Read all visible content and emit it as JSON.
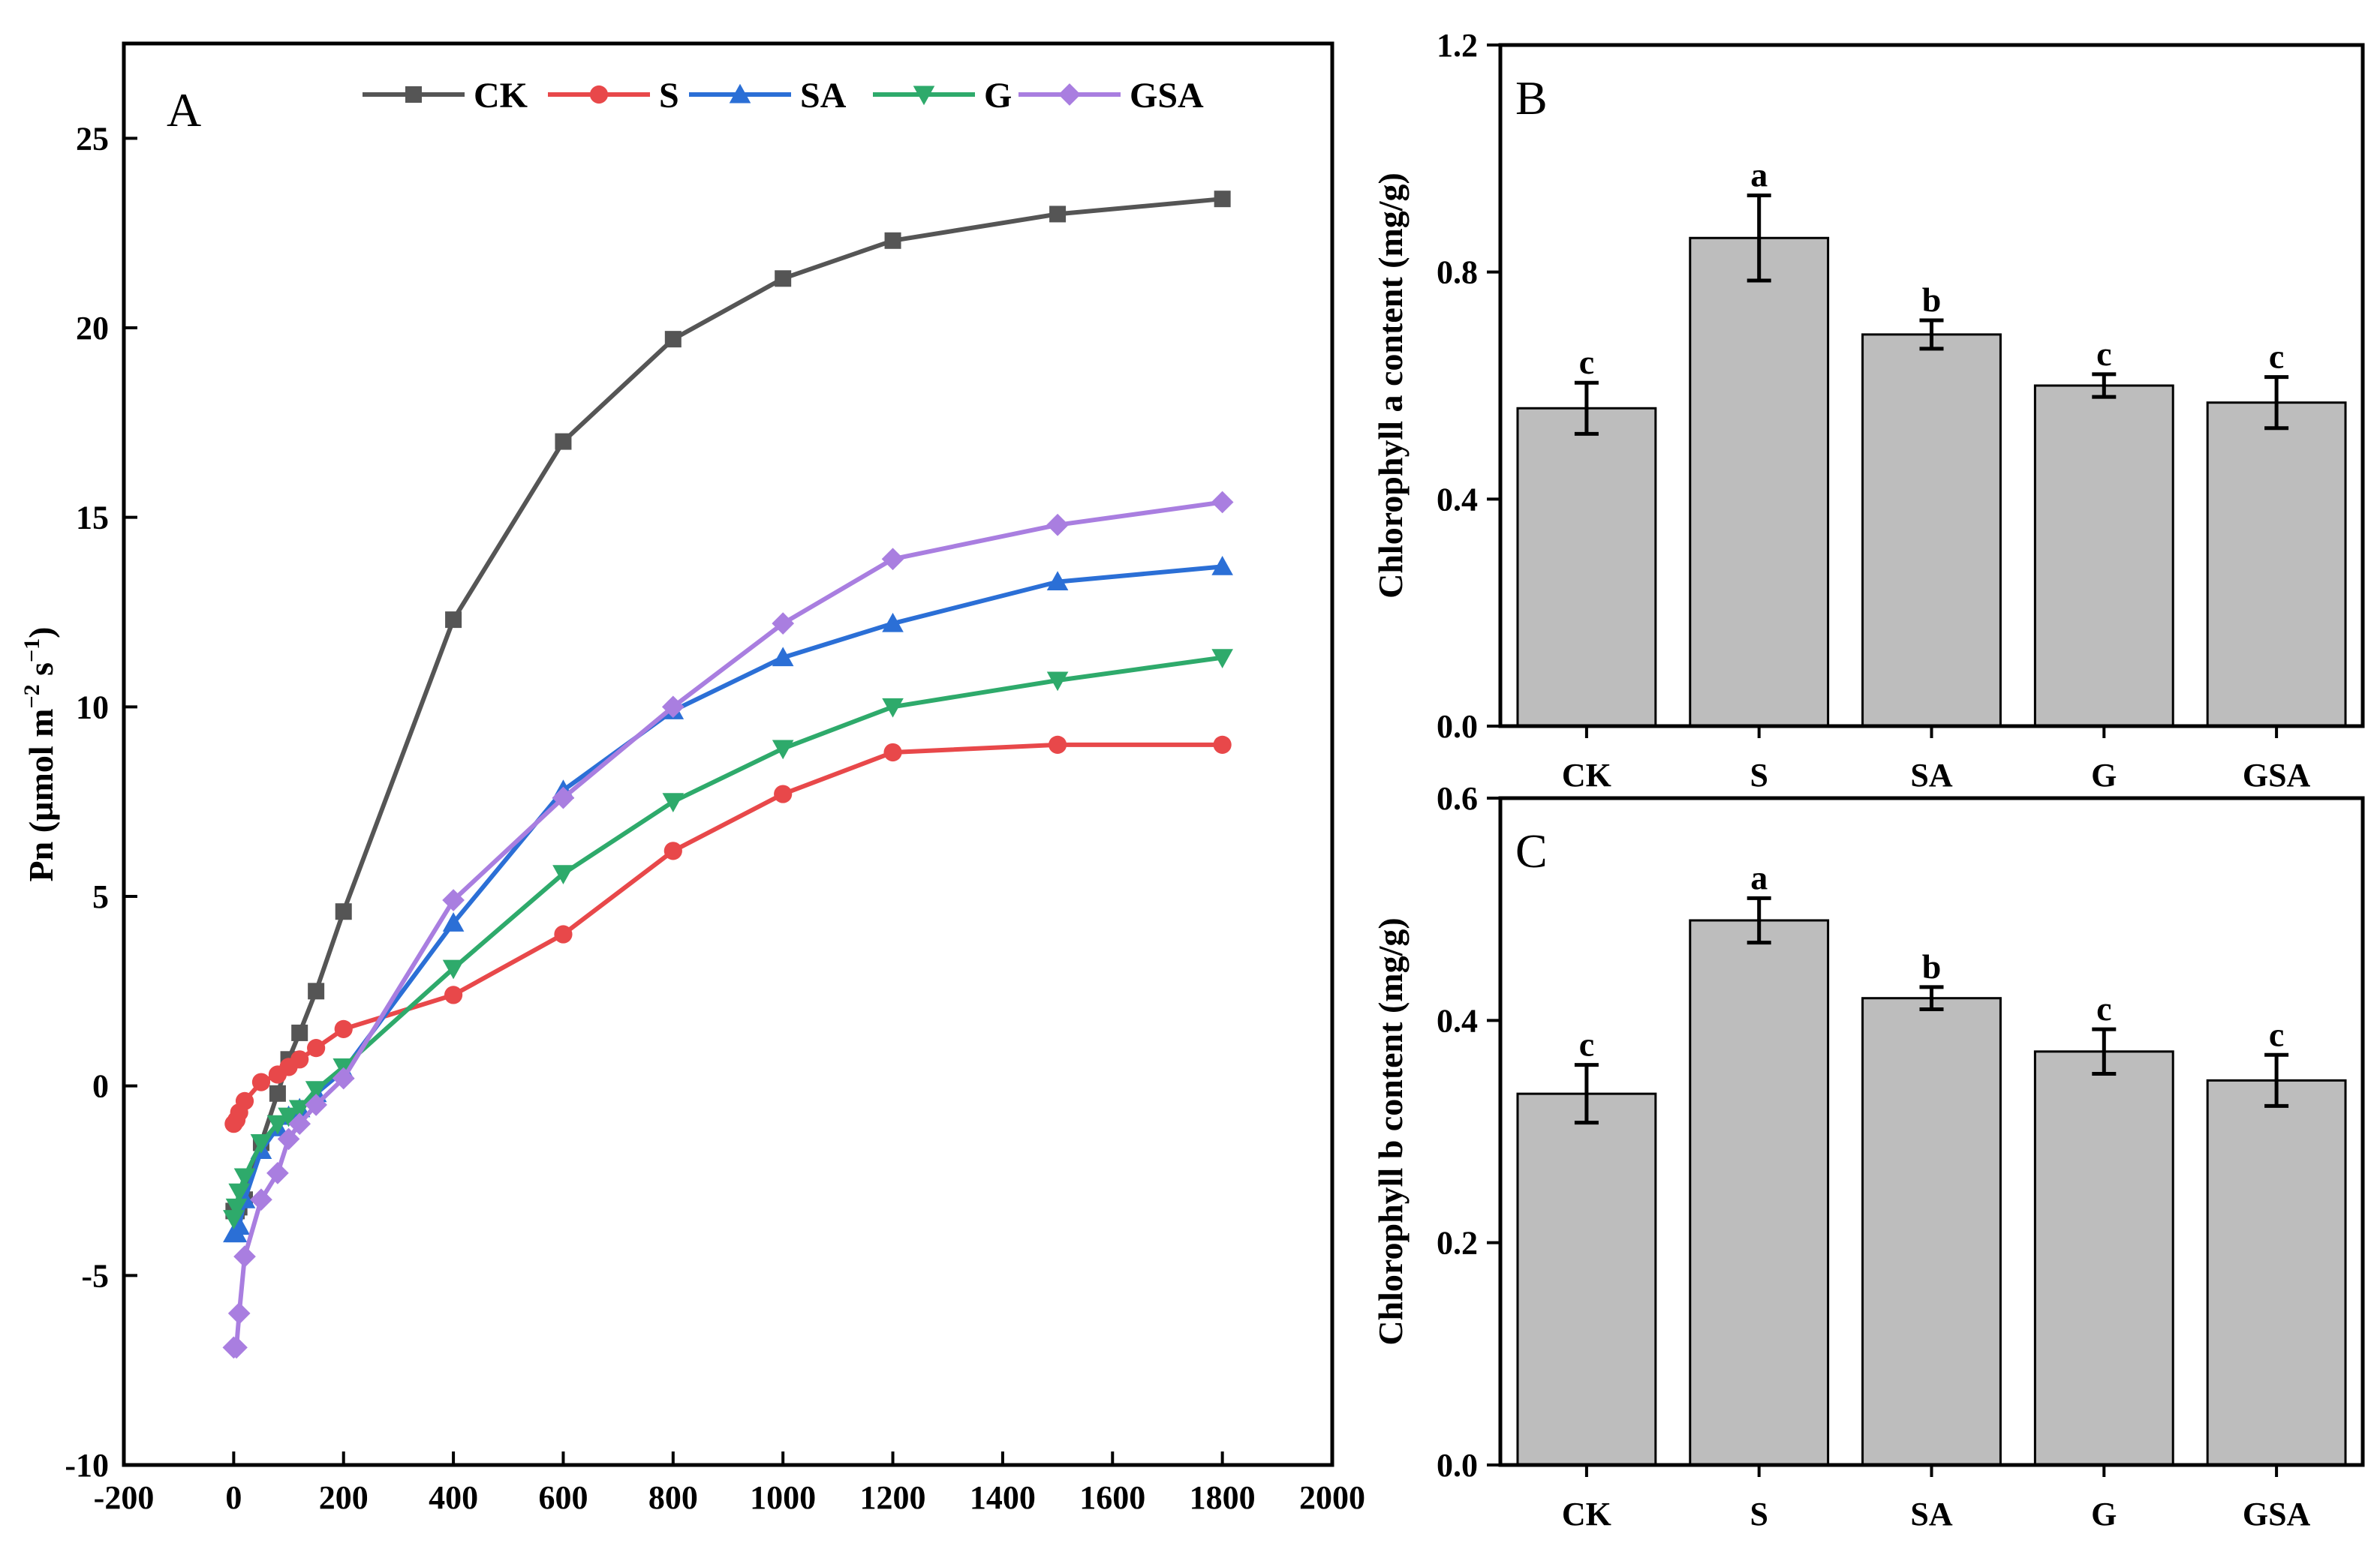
{
  "chart_data": [
    {
      "type": "line",
      "panel": "A",
      "title": "",
      "xlabel": "",
      "ylabel": "Pn (µmol m⁻² s⁻¹)",
      "ylabel_parts": {
        "base": "Pn (µmol m",
        "exp1": "−2",
        "mid": " s",
        "exp2": "−1",
        "end": ")"
      },
      "xlim": [
        -200,
        2000
      ],
      "ylim": [
        -10,
        27.5
      ],
      "xticks": [
        -200,
        0,
        200,
        400,
        600,
        800,
        1000,
        1200,
        1400,
        1600,
        1800,
        2000
      ],
      "yticks": [
        -10,
        -5,
        0,
        5,
        10,
        15,
        20,
        25
      ],
      "legend_position": "top",
      "series": [
        {
          "name": "CK",
          "color": "#555555",
          "marker": "square",
          "x": [
            0,
            5,
            10,
            20,
            50,
            80,
            100,
            120,
            150,
            200,
            400,
            600,
            800,
            1000,
            1200,
            1500,
            1800
          ],
          "y": [
            -3.3,
            -3.3,
            -3.2,
            -3.0,
            -1.5,
            -0.2,
            0.7,
            1.4,
            2.5,
            4.6,
            12.3,
            17.0,
            19.7,
            21.3,
            22.3,
            23.0,
            23.4
          ]
        },
        {
          "name": "S",
          "color": "#e8484a",
          "marker": "circle",
          "x": [
            0,
            5,
            10,
            20,
            50,
            80,
            100,
            120,
            150,
            200,
            400,
            600,
            800,
            1000,
            1200,
            1500,
            1800
          ],
          "y": [
            -1.0,
            -0.9,
            -0.7,
            -0.4,
            0.1,
            0.3,
            0.5,
            0.7,
            1.0,
            1.5,
            2.4,
            4.0,
            6.2,
            7.7,
            8.8,
            9.0,
            9.0
          ]
        },
        {
          "name": "SA",
          "color": "#2b6fd6",
          "marker": "triangle-up",
          "x": [
            0,
            5,
            10,
            20,
            50,
            80,
            100,
            120,
            150,
            200,
            400,
            600,
            800,
            1000,
            1200,
            1500,
            1800
          ],
          "y": [
            -3.9,
            -3.9,
            -3.7,
            -3.0,
            -1.7,
            -1.1,
            -0.8,
            -0.6,
            -0.2,
            0.4,
            4.3,
            7.8,
            9.9,
            11.3,
            12.2,
            13.3,
            13.7
          ]
        },
        {
          "name": "G",
          "color": "#2eaa6b",
          "marker": "triangle-down",
          "x": [
            0,
            5,
            10,
            20,
            50,
            80,
            100,
            120,
            150,
            200,
            400,
            600,
            800,
            1000,
            1200,
            1500,
            1800
          ],
          "y": [
            -3.5,
            -3.2,
            -2.8,
            -2.4,
            -1.5,
            -1.0,
            -0.8,
            -0.6,
            -0.1,
            0.5,
            3.1,
            5.6,
            7.5,
            8.9,
            10.0,
            10.7,
            11.3
          ]
        },
        {
          "name": "GSA",
          "color": "#a97ee0",
          "marker": "diamond",
          "x": [
            0,
            5,
            10,
            20,
            50,
            80,
            100,
            120,
            150,
            200,
            400,
            600,
            800,
            1000,
            1200,
            1500,
            1800
          ],
          "y": [
            -6.9,
            -6.9,
            -6.0,
            -4.5,
            -3.0,
            -2.3,
            -1.4,
            -1.0,
            -0.5,
            0.2,
            4.9,
            7.6,
            10.0,
            12.2,
            13.9,
            14.8,
            15.4
          ]
        }
      ]
    },
    {
      "type": "bar",
      "panel": "B",
      "title": "",
      "xlabel": "",
      "ylabel": "Chlorophyll a content (mg/g)",
      "categories": [
        "CK",
        "S",
        "SA",
        "G",
        "GSA"
      ],
      "values": [
        0.56,
        0.86,
        0.69,
        0.6,
        0.57
      ],
      "errors": [
        0.045,
        0.075,
        0.025,
        0.02,
        0.045
      ],
      "significance": [
        "c",
        "a",
        "b",
        "c",
        "c"
      ],
      "ylim": [
        0,
        1.2
      ],
      "yticks": [
        "0.0",
        "0.4",
        "0.8",
        "1.2"
      ],
      "bar_color": "#bdbdbd"
    },
    {
      "type": "bar",
      "panel": "C",
      "title": "",
      "xlabel": "",
      "ylabel": "Chlorophyll b content (mg/g)",
      "categories": [
        "CK",
        "S",
        "SA",
        "G",
        "GSA"
      ],
      "values": [
        0.334,
        0.49,
        0.42,
        0.372,
        0.346
      ],
      "errors": [
        0.026,
        0.02,
        0.01,
        0.02,
        0.023
      ],
      "significance": [
        "c",
        "a",
        "b",
        "c",
        "c"
      ],
      "ylim": [
        0,
        0.6
      ],
      "yticks": [
        "0.0",
        "0.2",
        "0.4",
        "0.6"
      ],
      "bar_color": "#bdbdbd"
    }
  ]
}
